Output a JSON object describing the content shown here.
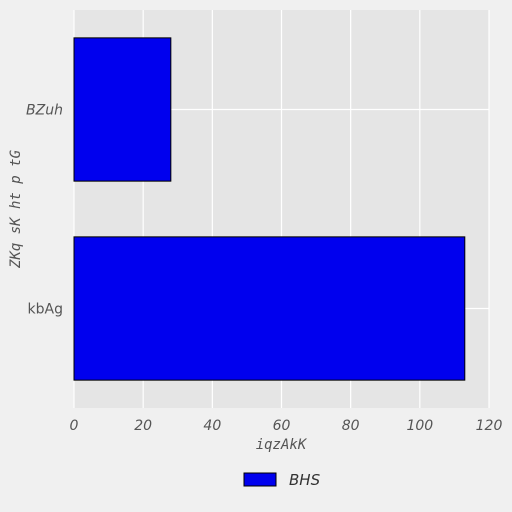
{
  "chart_data": {
    "type": "bar",
    "orientation": "horizontal",
    "categories": [
      "kbAg",
      "BZuh"
    ],
    "series": [
      {
        "name": "BHS",
        "values": [
          113,
          28
        ],
        "color": "#0000ee"
      }
    ],
    "xlabel": "iqzAkK",
    "ylabel": "ZKq sK ht p tG",
    "xlim": [
      0,
      120
    ],
    "xticks": [
      0,
      20,
      40,
      60,
      80,
      100,
      120
    ],
    "grid": true,
    "legend_position": "bottom-center"
  },
  "colors": {
    "background": "#f0f0f0",
    "plot_background": "#e5e5e5",
    "grid": "#ffffff",
    "bar": "#0000ee",
    "bar_edge": "#000000"
  }
}
